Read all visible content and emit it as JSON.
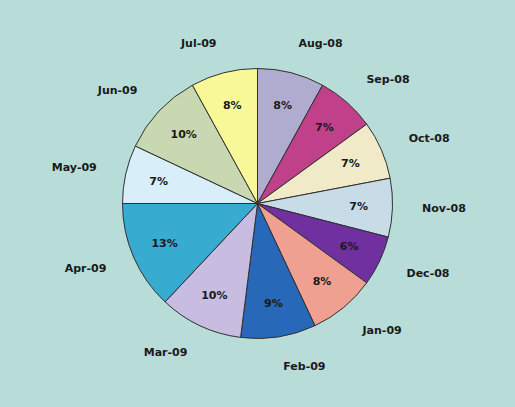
{
  "chart_data": {
    "type": "pie",
    "categories": [
      "Aug-08",
      "Sep-08",
      "Oct-08",
      "Nov-08",
      "Dec-08",
      "Jan-09",
      "Feb-09",
      "Mar-09",
      "Apr-09",
      "May-09",
      "Jun-09",
      "Jul-09"
    ],
    "values": [
      8,
      7,
      7,
      7,
      6,
      8,
      9,
      10,
      13,
      7,
      10,
      8
    ],
    "value_labels": [
      "8%",
      "7%",
      "7%",
      "7%",
      "6%",
      "8%",
      "9%",
      "10%",
      "13%",
      "7%",
      "10%",
      "8%"
    ],
    "colors": [
      "#b0acd0",
      "#c0408a",
      "#f0eac8",
      "#c8dce8",
      "#7030a0",
      "#f0a090",
      "#2868b8",
      "#c8bce0",
      "#38acd0",
      "#d8eef8",
      "#c8d8b0",
      "#f8f898"
    ],
    "data_labels": true
  }
}
